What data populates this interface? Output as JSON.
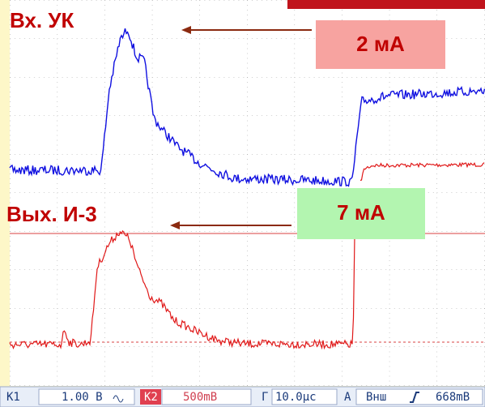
{
  "labels": {
    "input": "Вх. УК",
    "input_current": "2 мА",
    "output": "Вых. И-3",
    "output_current": "7 мА"
  },
  "status_bar": {
    "ch1_label": "K1",
    "ch1_scale": "1.00 В",
    "ch2_label": "K2",
    "ch2_scale": "500mB",
    "time_label": "Г",
    "time_scale": "10.0μс",
    "trigger_label": "A",
    "trigger_source": "Внш",
    "trigger_level": "668mB"
  }
}
